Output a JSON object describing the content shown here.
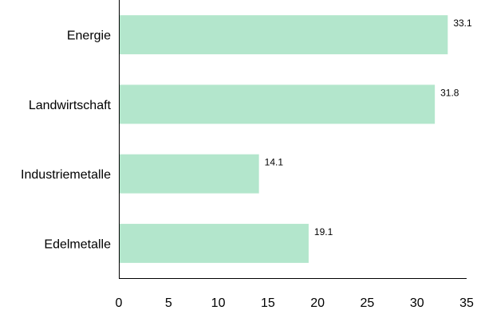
{
  "chart_data": {
    "type": "bar",
    "orientation": "horizontal",
    "categories": [
      "Energie",
      "Landwirtschaft",
      "Industriemetalle",
      "Edelmetalle"
    ],
    "values": [
      33.1,
      31.8,
      14.1,
      19.1
    ],
    "data_labels": [
      "33.1",
      "31.8",
      "14.1",
      "19.1"
    ],
    "x_ticks": [
      "0",
      "5",
      "10",
      "15",
      "20",
      "25",
      "30",
      "35"
    ],
    "xlim": [
      0,
      35
    ],
    "grid": false,
    "bar_color": "#b3e6cc",
    "axis_color": "#000000"
  }
}
